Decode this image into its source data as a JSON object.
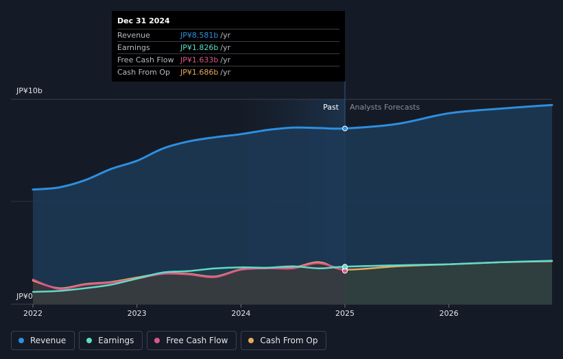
{
  "colors": {
    "revenue": "#2e8fe0",
    "earnings": "#5fdcc8",
    "free_cash_flow": "#d9578a",
    "cash_from_op": "#e8a95c"
  },
  "tooltip": {
    "date": "Dec 31 2024",
    "rows": [
      {
        "label": "Revenue",
        "value": "JP¥8.581b",
        "unit": "/yr"
      },
      {
        "label": "Earnings",
        "value": "JP¥1.826b",
        "unit": "/yr"
      },
      {
        "label": "Free Cash Flow",
        "value": "JP¥1.633b",
        "unit": "/yr"
      },
      {
        "label": "Cash From Op",
        "value": "JP¥1.686b",
        "unit": "/yr"
      }
    ]
  },
  "legend": [
    {
      "label": "Revenue",
      "color": "#2e8fe0"
    },
    {
      "label": "Earnings",
      "color": "#5fdcc8"
    },
    {
      "label": "Free Cash Flow",
      "color": "#d9578a"
    },
    {
      "label": "Cash From Op",
      "color": "#e8a95c"
    }
  ],
  "chart_data": {
    "type": "area",
    "y_top_label": "JP¥10b",
    "y_bottom_label": "JP¥0",
    "ylim": [
      0,
      10
    ],
    "xlim": [
      2022.0,
      2027.0
    ],
    "x_ticks": [
      {
        "value": 2022.0,
        "label": "2022"
      },
      {
        "value": 2023.0,
        "label": "2023"
      },
      {
        "value": 2024.0,
        "label": "2024"
      },
      {
        "value": 2025.0,
        "label": "2025"
      },
      {
        "value": 2026.0,
        "label": "2026"
      }
    ],
    "divider_x": 2025.0,
    "past_label": "Past",
    "forecast_label": "Analysts Forecasts",
    "series": [
      {
        "name": "Revenue",
        "key": "revenue",
        "x": [
          2022.0,
          2022.25,
          2022.5,
          2022.75,
          2023.0,
          2023.25,
          2023.5,
          2023.75,
          2024.0,
          2024.25,
          2024.5,
          2024.75,
          2025.0,
          2025.5,
          2026.0,
          2026.5,
          2026.92,
          2027.0
        ],
        "y": [
          5.6,
          5.7,
          6.05,
          6.6,
          7.0,
          7.6,
          7.95,
          8.15,
          8.3,
          8.5,
          8.62,
          8.6,
          8.58,
          8.8,
          9.32,
          9.55,
          9.7,
          9.72
        ],
        "forecast_from_index": 12
      },
      {
        "name": "Cash From Op",
        "key": "cash_from_op",
        "x": [
          2022.0,
          2022.25,
          2022.5,
          2022.75,
          2023.0,
          2023.25,
          2023.5,
          2023.75,
          2024.0,
          2024.25,
          2024.5,
          2024.75,
          2025.0,
          2025.5,
          2026.0,
          2026.5,
          2027.0
        ],
        "y": [
          1.15,
          0.78,
          0.98,
          1.08,
          1.3,
          1.5,
          1.48,
          1.35,
          1.7,
          1.78,
          1.78,
          2.05,
          1.69,
          1.85,
          1.95,
          2.05,
          2.1
        ],
        "forecast_from_index": 12
      },
      {
        "name": "Free Cash Flow",
        "key": "free_cash_flow",
        "x": [
          2022.0,
          2022.25,
          2022.5,
          2022.75,
          2023.0,
          2023.25,
          2023.5,
          2023.75,
          2024.0,
          2024.25,
          2024.5,
          2024.75,
          2025.0
        ],
        "y": [
          1.2,
          0.75,
          0.95,
          1.05,
          1.25,
          1.48,
          1.45,
          1.32,
          1.68,
          1.75,
          1.75,
          2.0,
          1.63
        ],
        "forecast_from_index": 99
      },
      {
        "name": "Earnings",
        "key": "earnings",
        "x": [
          2022.0,
          2022.25,
          2022.5,
          2022.75,
          2023.0,
          2023.25,
          2023.5,
          2023.75,
          2024.0,
          2024.25,
          2024.5,
          2024.75,
          2025.0,
          2025.5,
          2026.0,
          2026.5,
          2027.0
        ],
        "y": [
          0.6,
          0.65,
          0.78,
          0.95,
          1.25,
          1.55,
          1.62,
          1.75,
          1.8,
          1.78,
          1.85,
          1.75,
          1.83,
          1.9,
          1.95,
          2.05,
          2.12
        ],
        "forecast_from_index": 12
      }
    ]
  }
}
